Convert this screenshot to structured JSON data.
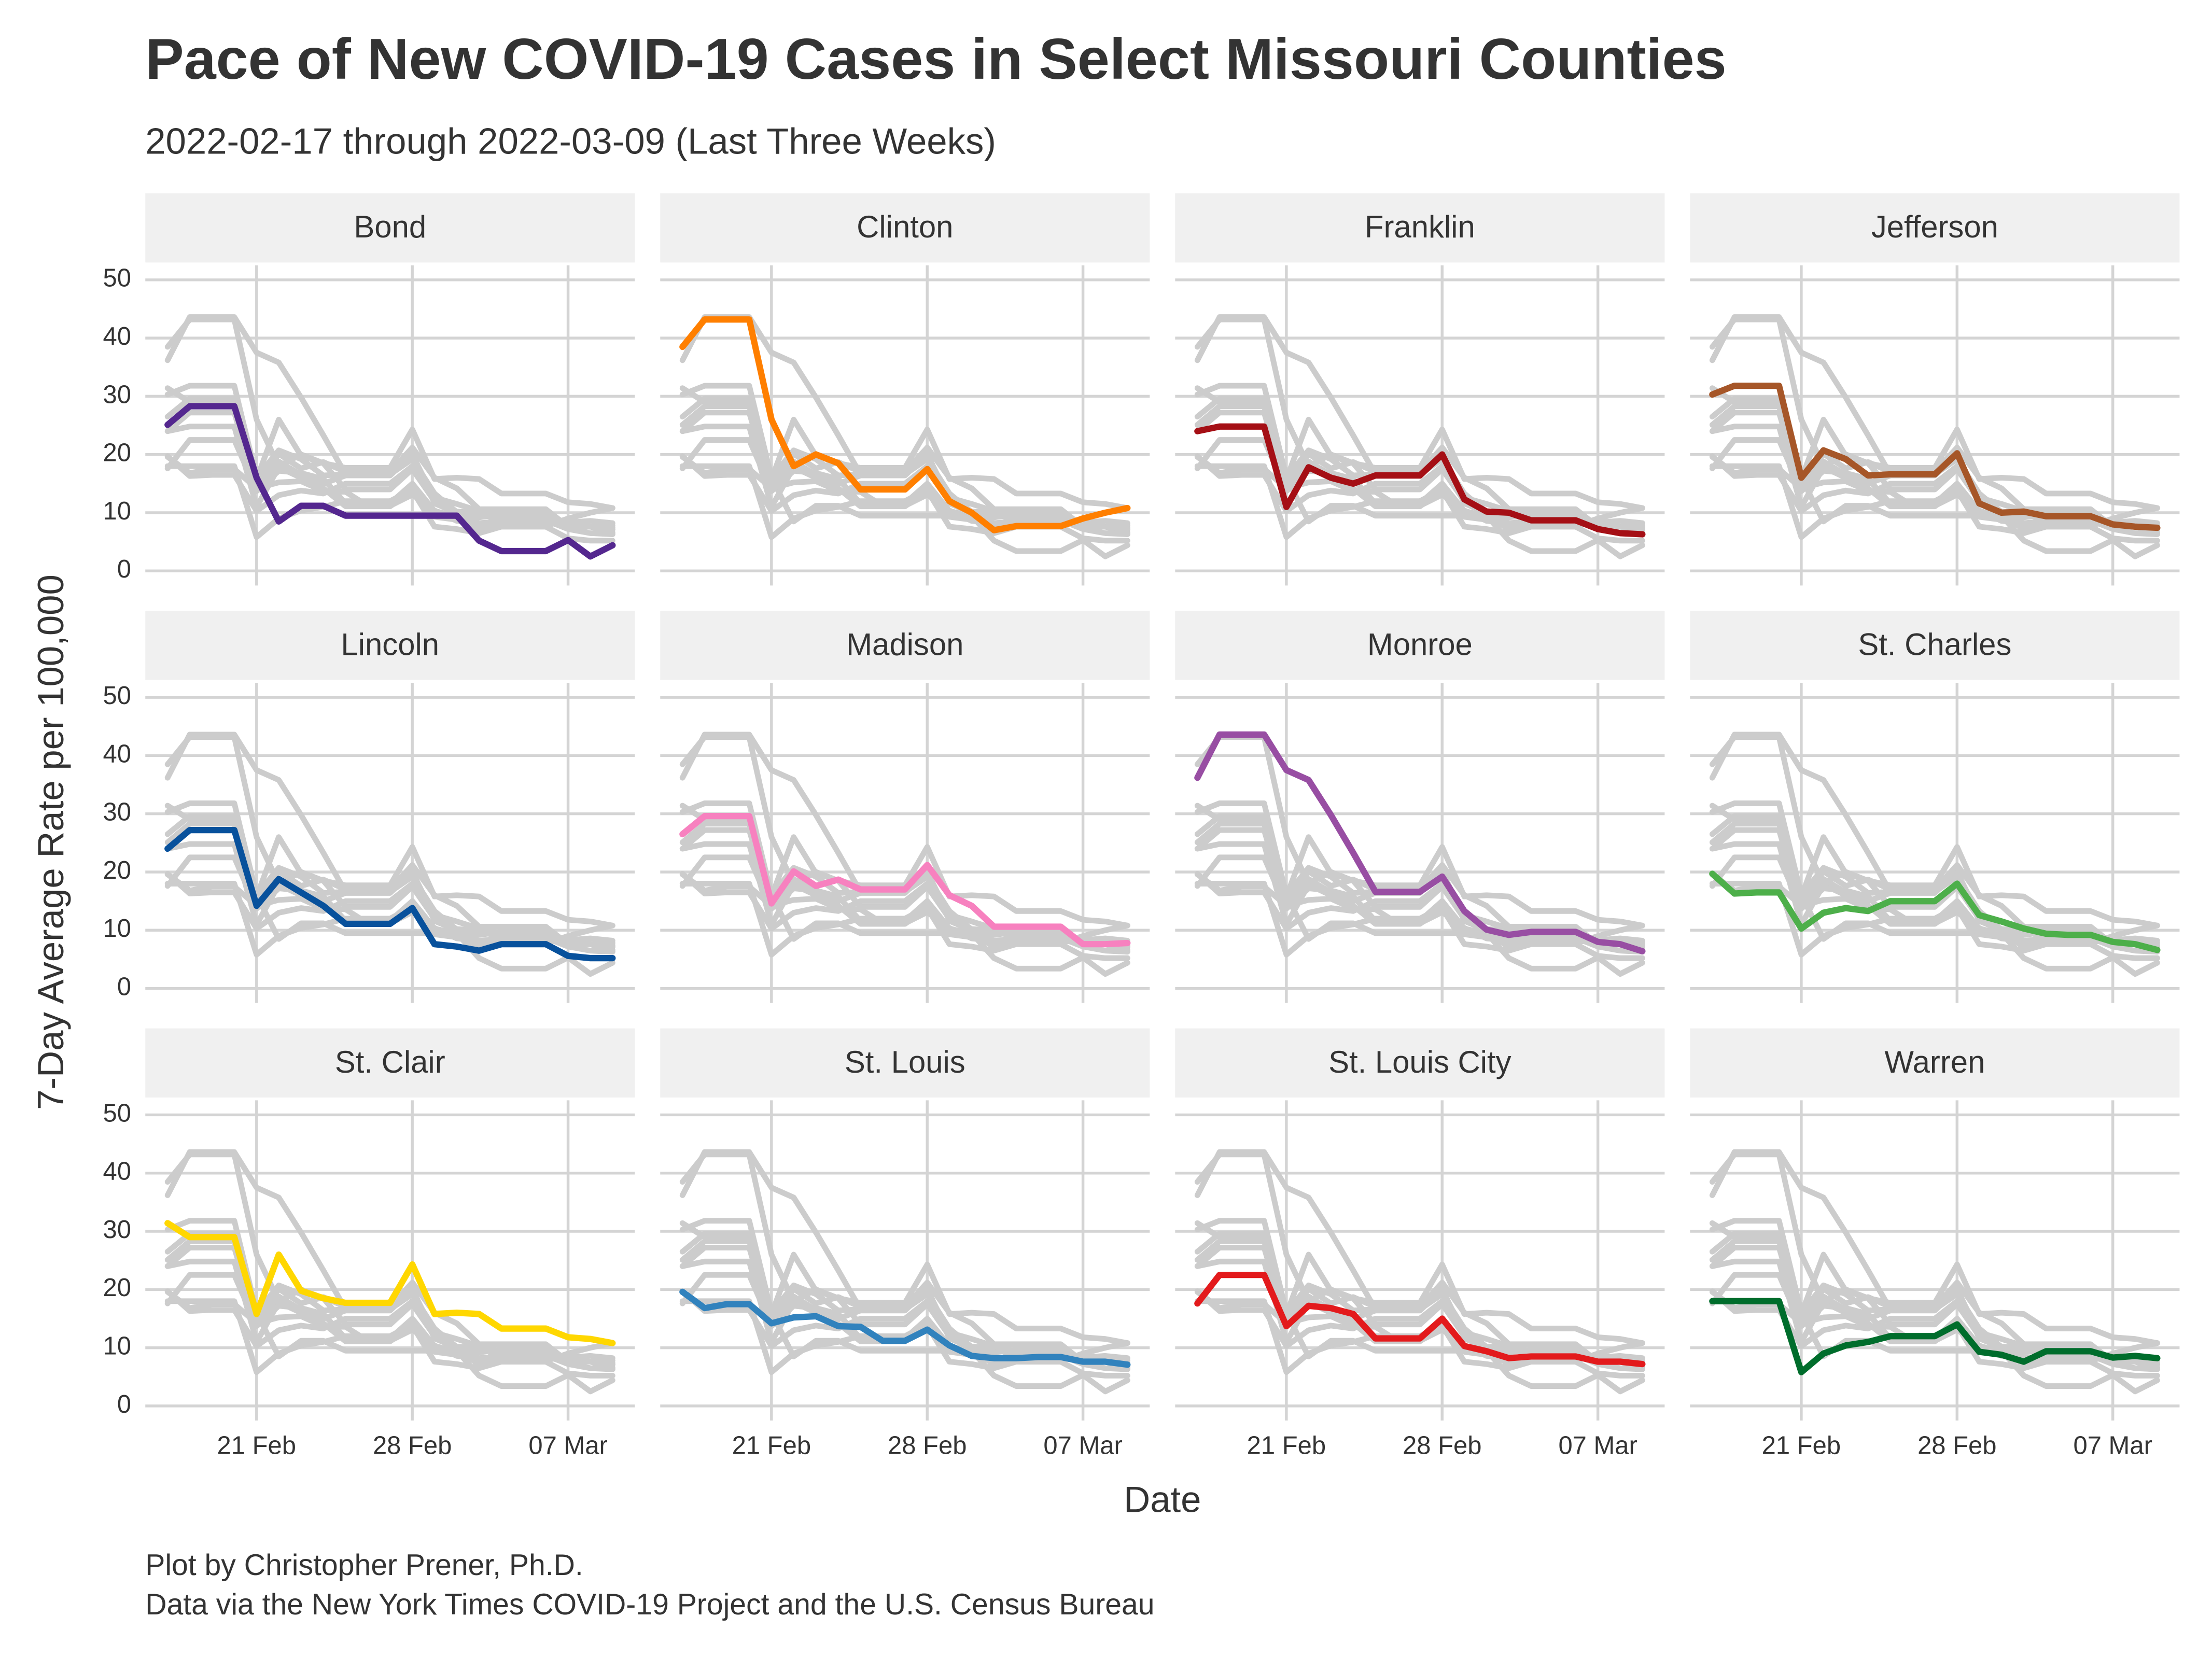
{
  "chart_data": {
    "type": "line",
    "title": "Pace of New COVID-19 Cases in Select Missouri Counties",
    "subtitle": "2022-02-17 through 2022-03-09 (Last Three Weeks)",
    "x_label": "Date",
    "y_label": "7-Day Average Rate per 100,000",
    "caption": [
      "Plot by Christopher Prener, Ph.D.",
      "Data via the New York Times COVID-19 Project and the U.S. Census Bureau"
    ],
    "x": [
      "17 Feb",
      "18 Feb",
      "19 Feb",
      "20 Feb",
      "21 Feb",
      "22 Feb",
      "23 Feb",
      "24 Feb",
      "25 Feb",
      "26 Feb",
      "27 Feb",
      "28 Feb",
      "01 Mar",
      "02 Mar",
      "03 Mar",
      "04 Mar",
      "05 Mar",
      "06 Mar",
      "07 Mar",
      "08 Mar",
      "09 Mar"
    ],
    "xticks": [
      "21 Feb",
      "28 Feb",
      "07 Mar"
    ],
    "ylim": [
      -2.5,
      52.5
    ],
    "yticks": [
      0,
      10,
      20,
      30,
      40,
      50
    ],
    "grid": true,
    "context_color": "#cccccc",
    "series": [
      {
        "name": "Bond",
        "color": "#54278f",
        "values": [
          25.1,
          28.3,
          28.3,
          28.3,
          16,
          8.5,
          11.2,
          11.2,
          9.5,
          9.5,
          9.5,
          9.5,
          9.5,
          9.5,
          5.2,
          3.4,
          3.4,
          3.4,
          5.3,
          2.5,
          4.4
        ]
      },
      {
        "name": "Clinton",
        "color": "#ff7f00",
        "values": [
          38.5,
          43.2,
          43.2,
          43.2,
          26,
          18,
          20,
          18.5,
          14,
          14,
          14,
          17.5,
          12,
          10,
          7,
          7.7,
          7.7,
          7.7,
          9,
          10,
          10.8
        ]
      },
      {
        "name": "Franklin",
        "color": "#a50f15",
        "values": [
          24,
          24.8,
          24.8,
          24.8,
          11,
          17.8,
          16,
          15,
          16.4,
          16.4,
          16.4,
          20,
          12.3,
          10.2,
          10,
          8.7,
          8.7,
          8.7,
          7.2,
          6.5,
          6.3
        ]
      },
      {
        "name": "Jefferson",
        "color": "#a65628",
        "values": [
          30.3,
          31.8,
          31.8,
          31.8,
          16,
          20.7,
          19.2,
          16.4,
          16.6,
          16.6,
          16.6,
          20.2,
          11.6,
          10,
          10.2,
          9.4,
          9.4,
          9.4,
          8,
          7.6,
          7.4
        ]
      },
      {
        "name": "Lincoln",
        "color": "#08519c",
        "values": [
          24,
          27.2,
          27.2,
          27.2,
          14.2,
          18.8,
          16.5,
          14.2,
          11.1,
          11.1,
          11.1,
          13.8,
          7.6,
          7.2,
          6.5,
          7.6,
          7.6,
          7.6,
          5.6,
          5.2,
          5.2
        ]
      },
      {
        "name": "Madison",
        "color": "#f781bf",
        "values": [
          26.5,
          29.6,
          29.6,
          29.6,
          14.6,
          20.1,
          17.6,
          18.7,
          17,
          17,
          17,
          21.2,
          16,
          14.2,
          10.6,
          10.6,
          10.6,
          10.6,
          7.6,
          7.6,
          7.8
        ]
      },
      {
        "name": "Monroe",
        "color": "#984ea3",
        "values": [
          36.2,
          43.6,
          43.6,
          43.6,
          37.5,
          35.8,
          29.8,
          23.3,
          16.6,
          16.6,
          16.6,
          19.2,
          13.3,
          10.1,
          9.2,
          9.7,
          9.7,
          9.7,
          8,
          7.6,
          6.4
        ]
      },
      {
        "name": "St. Charles",
        "color": "#4daf4a",
        "values": [
          19.7,
          16.3,
          16.5,
          16.5,
          10.3,
          13,
          13.8,
          13.3,
          15,
          15,
          15,
          18,
          12.6,
          11.5,
          10.3,
          9.4,
          9.2,
          9.2,
          8,
          7.6,
          6.6
        ]
      },
      {
        "name": "St. Clair",
        "color": "#ffd700",
        "values": [
          31.4,
          29,
          29,
          29,
          15.8,
          26,
          19.8,
          18.5,
          17.7,
          17.7,
          17.7,
          24.3,
          15.8,
          16,
          15.8,
          13.3,
          13.3,
          13.3,
          11.8,
          11.5,
          10.8
        ]
      },
      {
        "name": "St. Louis",
        "color": "#3182bd",
        "values": [
          19.6,
          16.8,
          17.5,
          17.5,
          14.2,
          15.2,
          15.4,
          13.7,
          13.6,
          11.2,
          11.2,
          13.1,
          10.4,
          8.6,
          8.2,
          8.2,
          8.4,
          8.4,
          7.6,
          7.6,
          7.1
        ]
      },
      {
        "name": "St. Louis City",
        "color": "#e31a1c",
        "values": [
          17.6,
          22.5,
          22.5,
          22.5,
          13.7,
          17.2,
          16.8,
          15.8,
          11.6,
          11.6,
          11.6,
          15,
          10.3,
          9.4,
          8.2,
          8.5,
          8.5,
          8.5,
          7.6,
          7.6,
          7.2
        ]
      },
      {
        "name": "Warren",
        "color": "#006d2c",
        "values": [
          18,
          18,
          18,
          18,
          5.8,
          9,
          10.4,
          11,
          12,
          12,
          12,
          14,
          9.3,
          8.8,
          7.6,
          9.4,
          9.4,
          9.4,
          8.3,
          8.6,
          8.2
        ]
      }
    ]
  }
}
